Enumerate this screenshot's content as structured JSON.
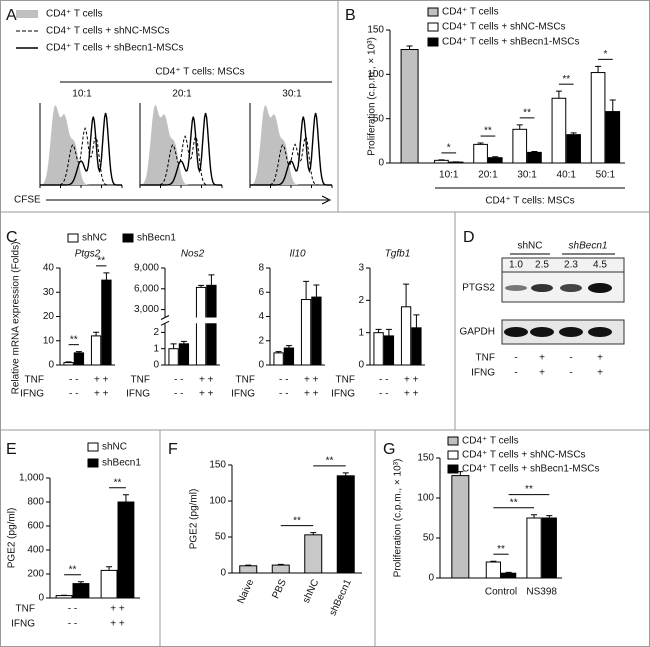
{
  "panel_labels": [
    "A",
    "B",
    "C",
    "D",
    "E",
    "F",
    "G"
  ],
  "panel_a": {
    "legend": [
      "CD4⁺ T cells",
      "CD4⁺ T cells + shNC-MSCs",
      "CD4⁺ T cells + shBecn1-MSCs"
    ],
    "header": "CD4⁺ T cells: MSCs",
    "ratios": [
      "10:1",
      "20:1",
      "30:1"
    ],
    "xlabel": "CFSE"
  },
  "panel_c": {
    "ylabel": "Relative mRNA expression (Folds)"
  },
  "panel_d": {
    "groups": [
      "shNC",
      "shBecn1"
    ],
    "ratios": [
      "1.0",
      "2.5",
      "2.3",
      "4.5"
    ],
    "bands": [
      "PTGS2",
      "GAPDH"
    ],
    "rows": [
      {
        "label": "TNF",
        "values": [
          "-",
          "+",
          "-",
          "+"
        ]
      },
      {
        "label": "IFNG",
        "values": [
          "-",
          "+",
          "-",
          "+"
        ]
      }
    ]
  },
  "chart_data": [
    {
      "type": "bar",
      "ylabel": "Proliferation (c.p.m., × 10³)",
      "xlabel": "CD4⁺ T cells: MSCs",
      "categories": [
        null,
        "10:1",
        "20:1",
        "30:1",
        "40:1",
        "50:1"
      ],
      "series": [
        {
          "name": "CD4⁺ T cells",
          "color": "#c0c0c0",
          "values": [
            128,
            null,
            null,
            null,
            null,
            null
          ],
          "errors": [
            4,
            null,
            null,
            null,
            null,
            null
          ]
        },
        {
          "name": "CD4⁺ T cells + shNC-MSCs",
          "color": "#ffffff",
          "values": [
            null,
            3,
            21,
            38,
            73,
            102
          ],
          "errors": [
            null,
            0.5,
            1.5,
            5,
            8,
            7
          ]
        },
        {
          "name": "CD4⁺ T cells + shBecn1-MSCs",
          "color": "#000000",
          "values": [
            null,
            1,
            6,
            12,
            32,
            58
          ],
          "errors": [
            null,
            0.3,
            1,
            1,
            2,
            13
          ]
        }
      ],
      "ylim": [
        0,
        150
      ],
      "yticks": [
        0,
        50,
        100,
        150
      ],
      "annotations": [
        "*",
        "**",
        "**",
        "**",
        "*"
      ]
    },
    {
      "type": "bar",
      "title": "Ptgs2",
      "categories": [
        null,
        null
      ],
      "series": [
        {
          "name": "shNC",
          "color": "#ffffff",
          "values": [
            1,
            12
          ],
          "errors": [
            0.3,
            1.5
          ]
        },
        {
          "name": "shBecn1",
          "color": "#000000",
          "values": [
            5,
            35
          ],
          "errors": [
            0.5,
            3
          ]
        }
      ],
      "x_rows": [
        {
          "label": "TNF",
          "values": [
            "- -",
            "+ +"
          ]
        },
        {
          "label": "IFNG",
          "values": [
            "- -",
            "+ +"
          ]
        }
      ],
      "ylim": [
        0,
        40
      ],
      "yticks": [
        0,
        10,
        20,
        30,
        40
      ],
      "annotations": [
        "**",
        "**"
      ]
    },
    {
      "type": "bar",
      "title": "Nos2",
      "categories": [
        null,
        null
      ],
      "series": [
        {
          "color": "#ffffff",
          "values": [
            1,
            6200
          ],
          "errors": [
            0.3,
            300
          ]
        },
        {
          "color": "#000000",
          "values": [
            1.3,
            6500
          ],
          "errors": [
            0.15,
            1500
          ]
        }
      ],
      "x_rows": [
        {
          "label": "TNF",
          "values": [
            "- -",
            "+ +"
          ]
        },
        {
          "label": "IFNG",
          "values": [
            "- -",
            "+ +"
          ]
        }
      ],
      "ylim": [
        0,
        9000
      ],
      "axis_break": [
        2.5,
        2000
      ],
      "yticks": [
        0,
        1,
        2,
        {
          "value": 3000,
          "label": "3,000"
        },
        {
          "value": 6000,
          "label": "6,000"
        },
        {
          "value": 9000,
          "label": "9,000"
        }
      ]
    },
    {
      "type": "bar",
      "title": "Il10",
      "categories": [
        null,
        null
      ],
      "series": [
        {
          "color": "#ffffff",
          "values": [
            1,
            5.4
          ],
          "errors": [
            0.1,
            1.5
          ]
        },
        {
          "color": "#000000",
          "values": [
            1.4,
            5.6
          ],
          "errors": [
            0.2,
            1
          ]
        }
      ],
      "x_rows": [
        {
          "label": "TNF",
          "values": [
            "- -",
            "+ +"
          ]
        },
        {
          "label": "IFNG",
          "values": [
            "- -",
            "+ +"
          ]
        }
      ],
      "ylim": [
        0,
        8
      ],
      "yticks": [
        0,
        2,
        4,
        6,
        8
      ]
    },
    {
      "type": "bar",
      "title": "Tgfb1",
      "categories": [
        null,
        null
      ],
      "series": [
        {
          "color": "#ffffff",
          "values": [
            1,
            1.8
          ],
          "errors": [
            0.1,
            0.7
          ]
        },
        {
          "color": "#000000",
          "values": [
            0.9,
            1.15
          ],
          "errors": [
            0.2,
            0.4
          ]
        }
      ],
      "x_rows": [
        {
          "label": "TNF",
          "values": [
            "- -",
            "+ +"
          ]
        },
        {
          "label": "IFNG",
          "values": [
            "- -",
            "+ +"
          ]
        }
      ],
      "ylim": [
        0,
        3
      ],
      "yticks": [
        0,
        1,
        2,
        3
      ]
    },
    {
      "type": "bar",
      "ylabel": "PGE2 (pg/ml)",
      "categories": [
        null,
        null
      ],
      "series": [
        {
          "name": "shNC",
          "color": "#ffffff",
          "values": [
            20,
            230
          ],
          "errors": [
            3,
            30
          ]
        },
        {
          "name": "shBecn1",
          "color": "#000000",
          "values": [
            120,
            800
          ],
          "errors": [
            15,
            60
          ]
        }
      ],
      "x_rows": [
        {
          "label": "TNF",
          "values": [
            "- -",
            "+ +"
          ]
        },
        {
          "label": "IFNG",
          "values": [
            "- -",
            "+ +"
          ]
        }
      ],
      "ylim": [
        0,
        1000
      ],
      "yticks": [
        0,
        200,
        400,
        600,
        800,
        {
          "value": 1000,
          "label": "1,000"
        }
      ],
      "annotations": [
        "**",
        "**"
      ]
    },
    {
      "type": "bar",
      "ylabel": "PGE2 (pg/ml)",
      "categories": [
        "Naive",
        "PBS",
        "shNC",
        "shBecn1"
      ],
      "values": [
        10,
        11,
        53,
        135
      ],
      "errors": [
        1,
        1,
        3,
        4
      ],
      "colors": [
        "#c8c8c8",
        "#c8c8c8",
        "#c8c8c8",
        "#000000"
      ],
      "ylim": [
        0,
        150
      ],
      "yticks": [
        0,
        50,
        100,
        150
      ],
      "annotations": [
        "**",
        "**"
      ]
    },
    {
      "type": "bar",
      "ylabel": "Proliferation (c.p.m., × 10³)",
      "categories": [
        null,
        "Control",
        "NS398"
      ],
      "series": [
        {
          "name": "CD4⁺ T cells",
          "color": "#c0c0c0",
          "values": [
            128,
            null,
            null
          ],
          "errors": [
            5,
            null,
            null
          ]
        },
        {
          "name": "CD4⁺ T cells + shNC-MSCs",
          "color": "#ffffff",
          "values": [
            null,
            20,
            75
          ],
          "errors": [
            null,
            1,
            4
          ]
        },
        {
          "name": "CD4⁺ T cells + shBecn1-MSCs",
          "color": "#000000",
          "values": [
            null,
            6,
            75
          ],
          "errors": [
            null,
            1,
            3
          ]
        }
      ],
      "ylim": [
        0,
        150
      ],
      "yticks": [
        0,
        50,
        100,
        150
      ],
      "annotations": [
        "**",
        "**",
        "**"
      ]
    }
  ]
}
